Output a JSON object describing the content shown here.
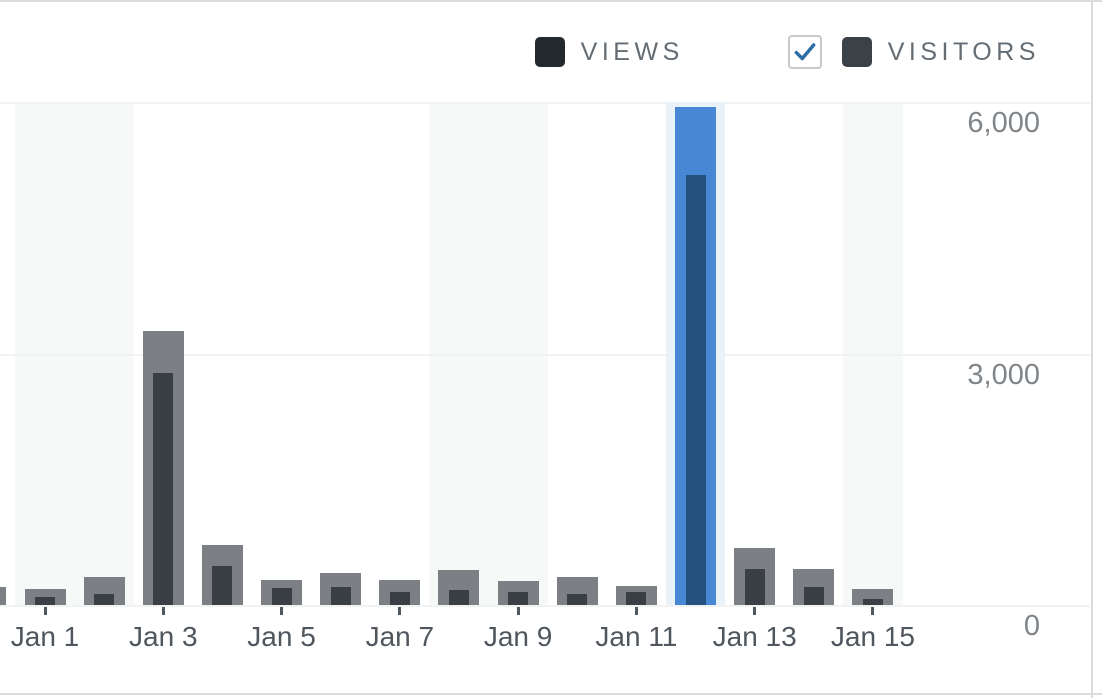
{
  "legend": {
    "views": {
      "label": "VIEWS",
      "swatch_color": "#24292e"
    },
    "visitors": {
      "label": "VISITORS",
      "swatch_color": "#3a4147",
      "checkbox_checked": true,
      "check_color": "#2d6da6"
    }
  },
  "chart_data": {
    "type": "bar",
    "title": "",
    "xlabel": "",
    "ylabel": "",
    "categories": [
      "Dec 31",
      "Jan 1",
      "Jan 2",
      "Jan 3",
      "Jan 4",
      "Jan 5",
      "Jan 6",
      "Jan 7",
      "Jan 8",
      "Jan 9",
      "Jan 10",
      "Jan 11",
      "Jan 12",
      "Jan 13",
      "Jan 14",
      "Jan 15"
    ],
    "series": [
      {
        "name": "Views",
        "values": [
          210,
          190,
          330,
          3270,
          720,
          300,
          380,
          300,
          420,
          290,
          335,
          225,
          5940,
          680,
          430,
          190
        ]
      },
      {
        "name": "Visitors",
        "values": [
          100,
          95,
          130,
          2770,
          470,
          200,
          215,
          155,
          180,
          155,
          130,
          155,
          5130,
          430,
          215,
          70
        ]
      }
    ],
    "ylim": [
      0,
      6000
    ],
    "y_ticks": [
      0,
      3000,
      6000
    ],
    "y_tick_labels": [
      "0",
      "3,000",
      "6,000"
    ],
    "x_tick_labels": [
      "Jan 1",
      "Jan 3",
      "Jan 5",
      "Jan 7",
      "Jan 9",
      "Jan 11",
      "Jan 13",
      "Jan 15"
    ],
    "highlighted_category": "Jan 12",
    "shaded_weekend_categories": [
      "Jan 1",
      "Jan 2",
      "Jan 8",
      "Jan 9",
      "Jan 15"
    ],
    "legend_position": "top-right",
    "grid": "horizontal",
    "colors": {
      "views_bar": "#7c8085",
      "visitors_bar": "#3a3f46",
      "views_bar_active": "#4787d4",
      "visitors_bar_active": "#24517d",
      "hover_column": "#e9f1f9",
      "weekend_stripe": "#f7f8f8",
      "gridline": "#f1f2f2"
    }
  }
}
